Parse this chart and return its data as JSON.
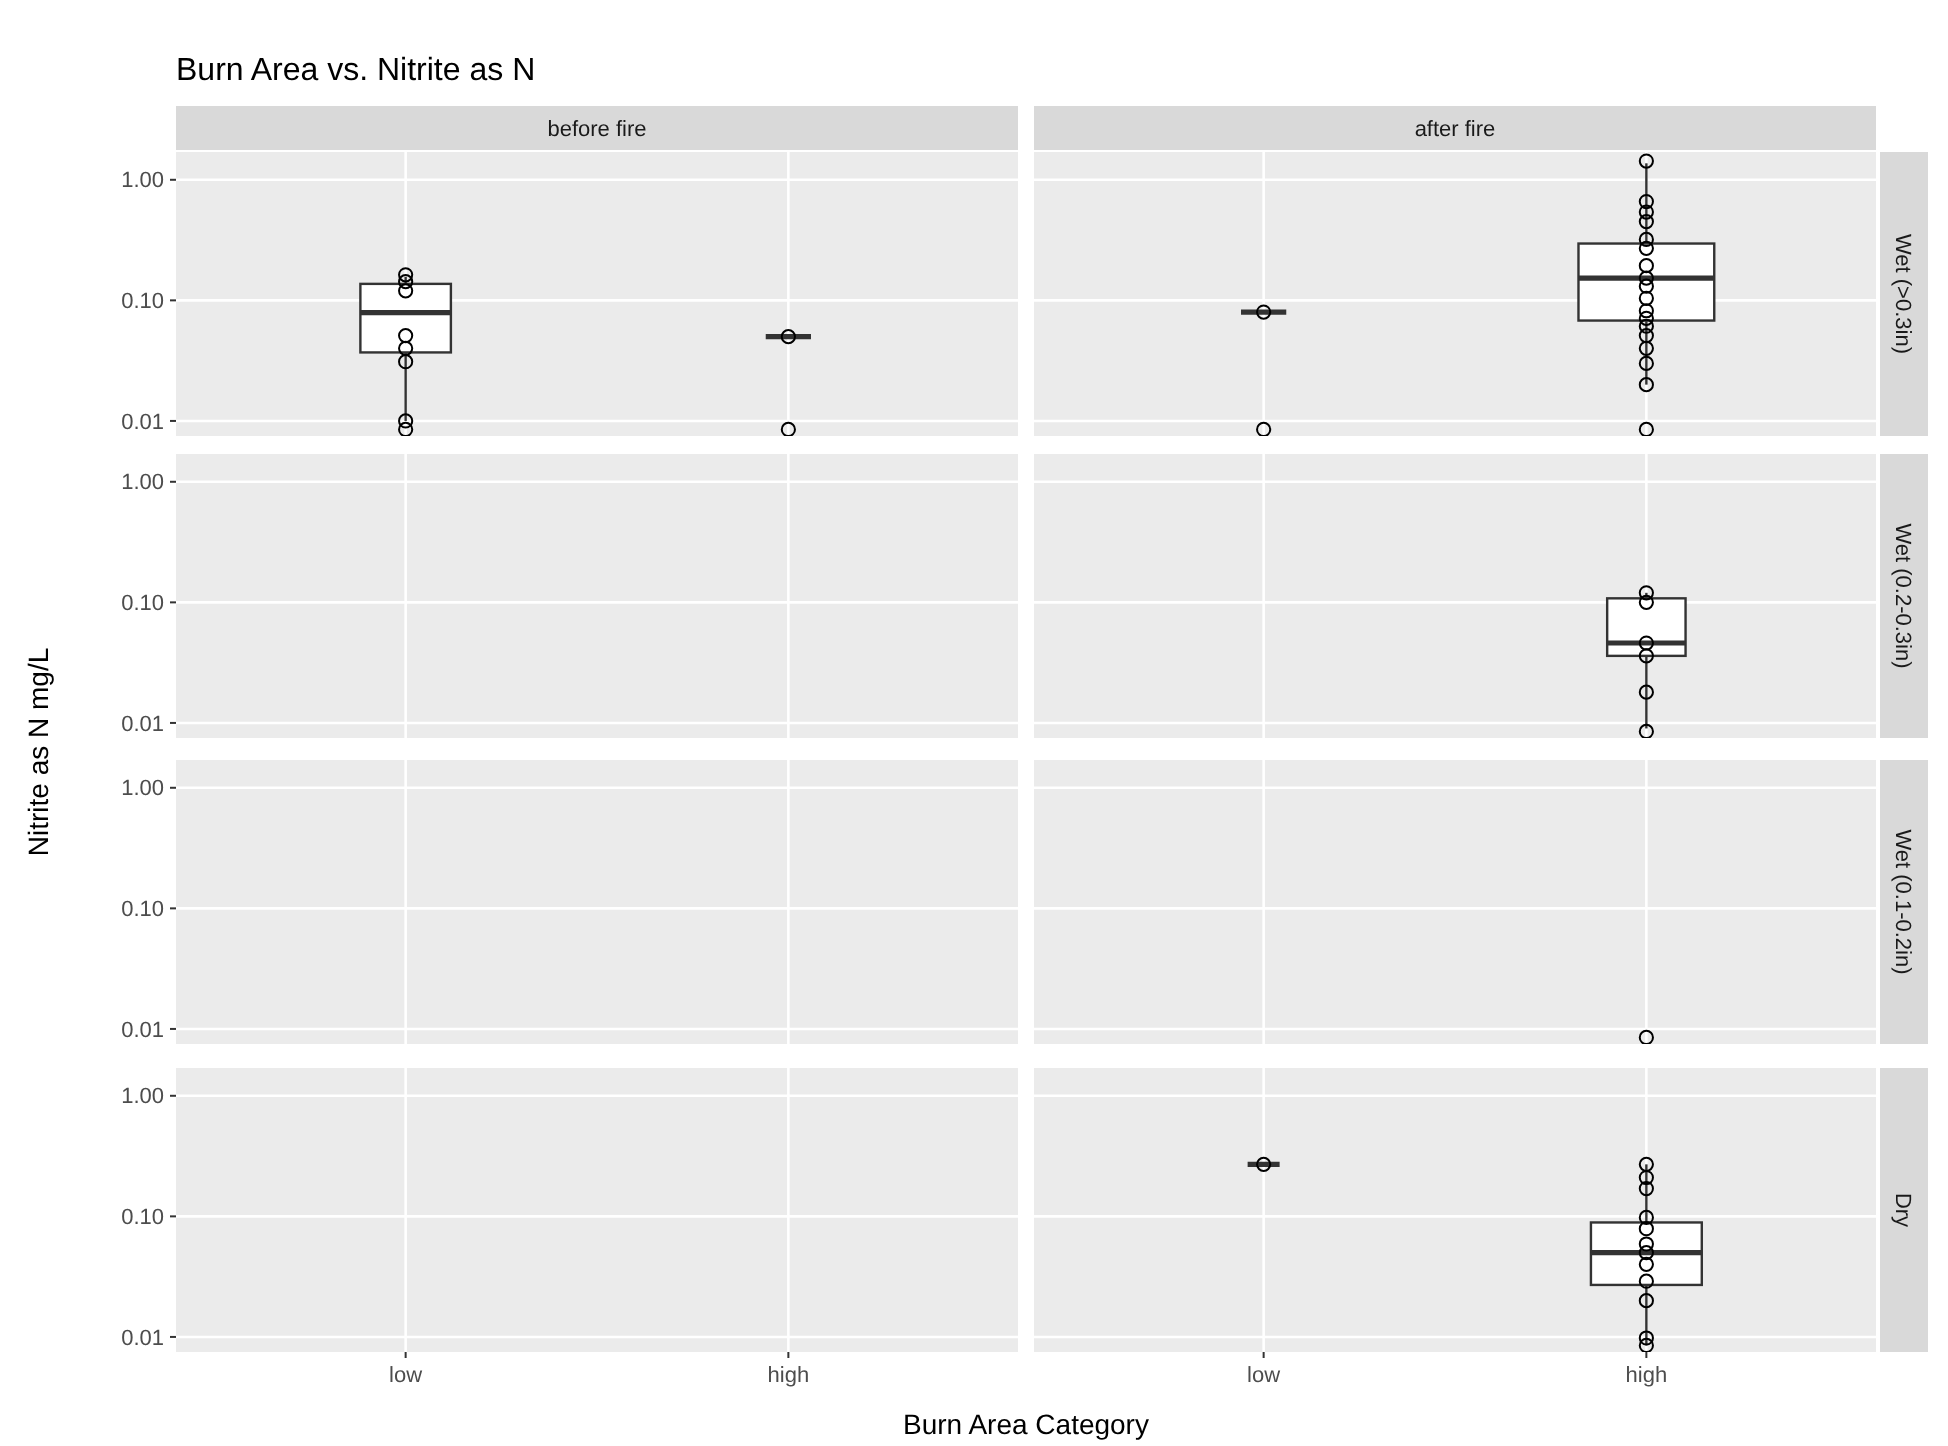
{
  "chart_data": [
    {
      "type": "box",
      "title": "Burn Area vs. Nitrite as N",
      "xlabel": "Burn Area Category",
      "subtitle": "before fire",
      "color": "#333333",
      "categories": [
        "low",
        "high"
      ],
      "log": true,
      "grid": true,
      "tick_labels": "y",
      "ylim": [
        0.0075,
        1.7
      ],
      "yticks": [
        {
          "value": 0.01,
          "label": "0.01"
        },
        {
          "value": 0.1,
          "label": "0.10"
        },
        {
          "value": 1,
          "label": "1.00"
        }
      ],
      "boxes": [
        {
          "low": 0.01,
          "q1": 0.037,
          "median": 0.079,
          "q3": 0.137,
          "high": 0.157
        },
        {
          "low": 0.05,
          "q1": 0.05,
          "median": 0.05,
          "q3": 0.05,
          "high": 0.05
        }
      ],
      "series": [
        {
          "type": "scatter",
          "marker": "circle",
          "color": "#000000",
          "x": [
            "low",
            "low",
            "low",
            "low",
            "low",
            "low",
            "low",
            "low",
            "high",
            "high"
          ],
          "values": [
            0.163,
            0.143,
            0.12,
            0.051,
            0.04,
            0.031,
            0.01,
            0.0085,
            0.05,
            0.0085
          ]
        }
      ]
    },
    {
      "type": "box",
      "subtitle": "after fire",
      "y2label": "Wet (>0.3in)",
      "color": "#333333",
      "categories": [
        "low",
        "high"
      ],
      "log": true,
      "grid": true,
      "tick_labels": false,
      "ylim": [
        0.0075,
        1.7
      ],
      "yticks": [
        0.01,
        0.1,
        1
      ],
      "boxes": [
        {
          "low": 0.08,
          "q1": 0.08,
          "median": 0.08,
          "q3": 0.08,
          "high": 0.08
        },
        {
          "low": 0.02,
          "q1": 0.068,
          "median": 0.153,
          "q3": 0.296,
          "high": 1.37
        }
      ],
      "series": [
        {
          "type": "scatter",
          "marker": "circle",
          "color": "#000000",
          "x": [
            "low",
            "low",
            "high",
            "high",
            "high",
            "high",
            "high",
            "high",
            "high",
            "high",
            "high",
            "high",
            "high",
            "high",
            "high",
            "high",
            "high",
            "high",
            "high",
            "high"
          ],
          "values": [
            0.08,
            0.0085,
            1.43,
            0.66,
            0.54,
            0.45,
            0.32,
            0.27,
            0.194,
            0.153,
            0.131,
            0.104,
            0.082,
            0.071,
            0.061,
            0.051,
            0.04,
            0.03,
            0.02,
            0.0085
          ]
        }
      ]
    },
    {
      "type": "box",
      "categories": [
        "low",
        "high"
      ],
      "log": true,
      "grid": true,
      "tick_labels": "y",
      "ylim": [
        0.0075,
        1.7
      ],
      "yticks": [
        {
          "value": 0.01,
          "label": "0.01"
        },
        {
          "value": 0.1,
          "label": "0.10"
        },
        {
          "value": 1,
          "label": "1.00"
        }
      ]
    },
    {
      "type": "box",
      "y2label": "Wet (0.2-0.3in)",
      "color": "#333333",
      "categories": [
        "low",
        "high"
      ],
      "log": true,
      "grid": true,
      "tick_labels": false,
      "ylim": [
        0.0075,
        1.7
      ],
      "yticks": [
        0.01,
        0.1,
        1
      ],
      "boxes": [
        null,
        {
          "low": 0.009,
          "q1": 0.036,
          "median": 0.046,
          "q3": 0.108,
          "high": 0.12
        }
      ],
      "series": [
        {
          "type": "scatter",
          "marker": "circle",
          "color": "#000000",
          "x": [
            "high",
            "high",
            "high",
            "high",
            "high",
            "high"
          ],
          "values": [
            0.12,
            0.1,
            0.046,
            0.036,
            0.018,
            0.0085
          ]
        }
      ]
    },
    {
      "type": "box",
      "ylabel": "Nitrite as N mg/L",
      "categories": [
        "low",
        "high"
      ],
      "log": true,
      "grid": true,
      "tick_labels": "y",
      "ylim": [
        0.0075,
        1.7
      ],
      "yticks": [
        {
          "value": 0.01,
          "label": "0.01"
        },
        {
          "value": 0.1,
          "label": "0.10"
        },
        {
          "value": 1,
          "label": "1.00"
        }
      ]
    },
    {
      "type": "box",
      "y2label": "Wet (0.1-0.2in)",
      "categories": [
        "low",
        "high"
      ],
      "log": true,
      "grid": true,
      "tick_labels": false,
      "ylim": [
        0.0075,
        1.7
      ],
      "yticks": [
        0.01,
        0.1,
        1
      ],
      "series": [
        {
          "type": "scatter",
          "marker": "circle",
          "color": "#000000",
          "x": [
            "high"
          ],
          "values": [
            0.0085
          ]
        }
      ]
    },
    {
      "type": "box",
      "categories": [
        "low",
        "high"
      ],
      "log": true,
      "grid": true,
      "ylim": [
        0.0075,
        1.7
      ],
      "yticks": [
        {
          "value": 0.01,
          "label": "0.01"
        },
        {
          "value": 0.1,
          "label": "0.10"
        },
        {
          "value": 1,
          "label": "1.00"
        }
      ]
    },
    {
      "type": "box",
      "y2label": "Dry",
      "color": "#333333",
      "categories": [
        "low",
        "high"
      ],
      "log": true,
      "grid": true,
      "tick_labels": "x",
      "ylim": [
        0.0075,
        1.7
      ],
      "yticks": [
        0.01,
        0.1,
        1
      ],
      "boxes": [
        {
          "low": 0.27,
          "q1": 0.27,
          "median": 0.27,
          "q3": 0.27,
          "high": 0.27
        },
        {
          "low": 0.0085,
          "q1": 0.027,
          "median": 0.05,
          "q3": 0.089,
          "high": 0.27
        }
      ],
      "series": [
        {
          "type": "scatter",
          "marker": "circle",
          "color": "#000000",
          "x": [
            "low",
            "high",
            "high",
            "high",
            "high",
            "high",
            "high",
            "high",
            "high",
            "high",
            "high",
            "high",
            "high"
          ],
          "values": [
            0.27,
            0.27,
            0.21,
            0.17,
            0.098,
            0.079,
            0.059,
            0.05,
            0.04,
            0.029,
            0.02,
            0.0098,
            0.0085
          ]
        }
      ]
    }
  ]
}
